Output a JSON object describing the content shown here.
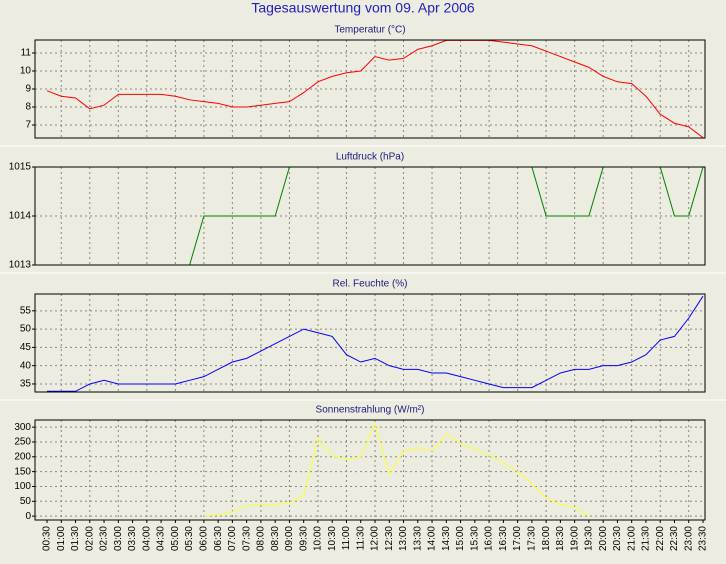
{
  "title": "Tagesauswertung vom 09. Apr 2006",
  "chart_data": [
    {
      "type": "line",
      "title": "Temperatur (°C)",
      "ylim": [
        6.28,
        11.72
      ],
      "yticks": [
        7,
        8,
        9,
        10,
        11
      ],
      "grid": true,
      "series": [
        {
          "color": "#ff0000",
          "values": [
            8.9,
            8.6,
            8.5,
            7.9,
            8.1,
            8.7,
            8.7,
            8.7,
            8.7,
            8.6,
            8.4,
            8.3,
            8.2,
            8.0,
            8.0,
            8.1,
            8.2,
            8.3,
            8.8,
            9.4,
            9.7,
            9.9,
            10.0,
            10.8,
            10.6,
            10.7,
            11.2,
            11.4,
            11.7,
            11.7,
            11.7,
            11.7,
            11.6,
            11.5,
            11.4,
            11.1,
            10.8,
            10.5,
            10.2,
            9.7,
            9.4,
            9.3,
            8.6,
            7.6,
            7.1,
            6.9,
            6.3
          ]
        }
      ]
    },
    {
      "type": "line",
      "title": "Luftdruck (hPa)",
      "ylim": [
        1013,
        1015
      ],
      "yticks": [
        1013,
        1014,
        1015
      ],
      "grid": true,
      "series": [
        {
          "color": "#008000",
          "values": [
            1013,
            1013,
            1013,
            1013,
            1013,
            1013,
            1013,
            1013,
            1013,
            1013,
            1013,
            1014,
            1014,
            1014,
            1014,
            1014,
            1014,
            1015,
            1015,
            1015,
            1015,
            1015,
            1015,
            1015,
            1015,
            1015,
            1015,
            1015,
            1015,
            1015,
            1015,
            1015,
            1015,
            1015,
            1015,
            1014,
            1014,
            1014,
            1014,
            1015,
            1015,
            1015,
            1015,
            1015,
            1014,
            1014,
            1015
          ]
        }
      ]
    },
    {
      "type": "line",
      "title": "Rel. Feuchte (%)",
      "ylim": [
        32.8,
        59.6
      ],
      "yticks": [
        35,
        40,
        45,
        50,
        55
      ],
      "grid": true,
      "series": [
        {
          "color": "#0000ff",
          "values": [
            33,
            33,
            33,
            35,
            36,
            35,
            35,
            35,
            35,
            35,
            36,
            37,
            39,
            41,
            42,
            44,
            46,
            48,
            50,
            49,
            48,
            43,
            41,
            42,
            40,
            39,
            39,
            38,
            38,
            37,
            36,
            35,
            34,
            34,
            34,
            36,
            38,
            39,
            39,
            40,
            40,
            41,
            43,
            47,
            48,
            53,
            59
          ]
        }
      ]
    },
    {
      "type": "line",
      "title": "Sonnenstrahlung (W/m²)",
      "ylim": [
        -13,
        324
      ],
      "yticks": [
        0,
        50,
        100,
        150,
        200,
        250,
        300
      ],
      "grid": true,
      "categories": [
        "00:30",
        "01:00",
        "01:30",
        "02:00",
        "02:30",
        "03:00",
        "03:30",
        "04:00",
        "04:30",
        "05:00",
        "05:30",
        "06:00",
        "06:30",
        "07:00",
        "07:30",
        "08:00",
        "08:30",
        "09:00",
        "09:30",
        "10:00",
        "10:30",
        "11:00",
        "11:30",
        "12:00",
        "12:30",
        "13:00",
        "13:30",
        "14:00",
        "14:30",
        "15:00",
        "15:30",
        "16:00",
        "16:30",
        "17:00",
        "17:30",
        "18:00",
        "18:30",
        "19:00",
        "19:30",
        "20:00",
        "20:30",
        "21:00",
        "21:30",
        "22:00",
        "22:30",
        "23:00",
        "23:30"
      ],
      "series": [
        {
          "color": "#ffff33",
          "values": [
            null,
            null,
            null,
            null,
            null,
            null,
            null,
            null,
            null,
            null,
            null,
            0,
            5,
            15,
            35,
            40,
            40,
            45,
            70,
            260,
            205,
            190,
            200,
            310,
            140,
            220,
            230,
            220,
            275,
            245,
            225,
            205,
            180,
            150,
            110,
            60,
            40,
            30,
            0,
            null,
            null,
            null,
            null,
            null,
            null,
            null,
            null
          ]
        }
      ]
    }
  ]
}
